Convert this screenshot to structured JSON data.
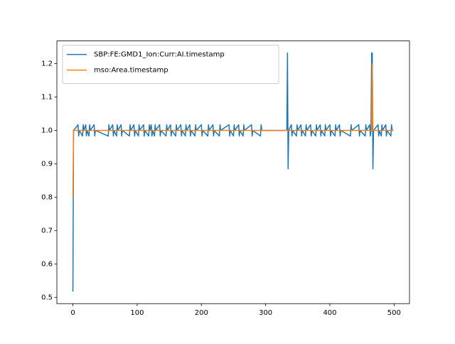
{
  "chart_data": {
    "type": "line",
    "x": [
      0,
      1,
      8,
      9,
      10,
      15,
      16,
      17,
      20,
      21,
      22,
      25,
      26,
      27,
      33,
      34,
      35,
      55,
      56,
      57,
      62,
      63,
      64,
      68,
      69,
      70,
      75,
      76,
      77,
      88,
      89,
      90,
      95,
      96,
      97,
      102,
      103,
      104,
      110,
      111,
      112,
      118,
      119,
      120,
      122,
      123,
      124,
      127,
      128,
      129,
      135,
      136,
      137,
      145,
      146,
      147,
      152,
      153,
      154,
      160,
      161,
      162,
      168,
      169,
      170,
      175,
      176,
      177,
      182,
      183,
      184,
      190,
      191,
      192,
      200,
      201,
      202,
      210,
      211,
      212,
      218,
      219,
      220,
      228,
      229,
      230,
      243,
      244,
      245,
      250,
      251,
      252,
      258,
      259,
      260,
      265,
      266,
      267,
      278,
      279,
      280,
      292,
      293,
      294,
      333,
      334,
      335,
      336,
      340,
      341,
      342,
      348,
      349,
      350,
      355,
      356,
      357,
      362,
      363,
      364,
      370,
      371,
      372,
      378,
      379,
      380,
      385,
      386,
      387,
      392,
      393,
      394,
      400,
      401,
      402,
      408,
      409,
      410,
      415,
      416,
      417,
      432,
      433,
      434,
      445,
      446,
      447,
      455,
      456,
      457,
      462,
      463,
      464,
      465,
      466,
      467,
      468,
      475,
      476,
      477,
      480,
      481,
      482,
      487,
      488,
      489,
      495,
      496,
      497,
      499
    ],
    "series": [
      {
        "name": "SBP:FE:GMD1_Ion:Curr:AI.timestamp",
        "color": "#1f77b4",
        "values": [
          0.517,
          1,
          1.017,
          0.983,
          1,
          0.983,
          1.017,
          1,
          1.017,
          0.983,
          1,
          0.983,
          1.017,
          1,
          1.017,
          0.983,
          1,
          0.983,
          1.017,
          1,
          1.017,
          0.983,
          1,
          0.983,
          1.017,
          1,
          1.017,
          0.983,
          1,
          0.983,
          1.017,
          1,
          1.017,
          0.983,
          1,
          0.983,
          1.017,
          1,
          1.017,
          0.983,
          1,
          0.983,
          1.017,
          1,
          1.017,
          0.983,
          1,
          0.983,
          1.017,
          1,
          1.017,
          0.983,
          1,
          0.983,
          1.017,
          1,
          1.017,
          0.983,
          1,
          0.983,
          1.017,
          1,
          1.017,
          0.983,
          1,
          0.983,
          1.017,
          1,
          1.017,
          0.983,
          1,
          0.983,
          1.017,
          1,
          1.017,
          0.983,
          1,
          0.983,
          1.017,
          1,
          1.017,
          0.983,
          1,
          0.983,
          1.017,
          1,
          1.017,
          0.983,
          1,
          0.983,
          1.017,
          1,
          1.017,
          0.983,
          1,
          0.983,
          1.017,
          1,
          1.017,
          0.983,
          1,
          0.983,
          1.017,
          1,
          1,
          1.232,
          0.885,
          1,
          1.017,
          0.983,
          1,
          0.983,
          1.017,
          1,
          1.017,
          0.983,
          1,
          0.983,
          1.017,
          1,
          1.017,
          0.983,
          1,
          0.983,
          1.017,
          1,
          1.017,
          0.983,
          1,
          0.983,
          1.017,
          1,
          1.017,
          0.983,
          1,
          0.983,
          1.017,
          1,
          1.017,
          0.983,
          1,
          0.983,
          1.017,
          1,
          1.017,
          0.983,
          1,
          0.983,
          1.017,
          1,
          1.017,
          0.983,
          1,
          1.232,
          1.232,
          0.885,
          1,
          1.017,
          0.983,
          1,
          0.983,
          1.017,
          1,
          1.017,
          0.983,
          1,
          0.983,
          1.017,
          1,
          1
        ]
      },
      {
        "name": "mso:Area.timestamp",
        "color": "#ff7f0e",
        "values": [
          0.8,
          1,
          1,
          1,
          1,
          1,
          1,
          1,
          1,
          1,
          1,
          1,
          1,
          1,
          1,
          1,
          1,
          1,
          1,
          1,
          1,
          1,
          1,
          1,
          1,
          1,
          1,
          1,
          1,
          1,
          1,
          1,
          1,
          1,
          1,
          1,
          1,
          1,
          1,
          1,
          1,
          1,
          1,
          1,
          1,
          1,
          1,
          1,
          1,
          1,
          1,
          1,
          1,
          1,
          1,
          1,
          1,
          1,
          1,
          1,
          1,
          1,
          1,
          1,
          1,
          1,
          1,
          1,
          1,
          1,
          1,
          1,
          1,
          1,
          1,
          1,
          1,
          1,
          1,
          1,
          1,
          1,
          1,
          1,
          1,
          1,
          1,
          1,
          1,
          1,
          1,
          1,
          1,
          1,
          1,
          1,
          1,
          1,
          1,
          1,
          1,
          1,
          1,
          1,
          1,
          1,
          1,
          1,
          1,
          1,
          1,
          1,
          1,
          1,
          1,
          1,
          1,
          1,
          1,
          1,
          1,
          1,
          1,
          1,
          1,
          1,
          1,
          1,
          1,
          1,
          1,
          1,
          1,
          1,
          1,
          1,
          1,
          1,
          1,
          1,
          1,
          1,
          1,
          1,
          1,
          1,
          1,
          1,
          1,
          1,
          1,
          1,
          1,
          1,
          1.2,
          1,
          1,
          1,
          1,
          1,
          1,
          1,
          1,
          1,
          1,
          1,
          1,
          1,
          1,
          1
        ]
      }
    ],
    "xlim": [
      -24.95,
      523.95
    ],
    "xticks": [
      0,
      100,
      200,
      300,
      400,
      500
    ],
    "ylim": [
      0.481,
      1.268
    ],
    "yticks": [
      0.5,
      0.6,
      0.7,
      0.8,
      0.9,
      {
        "value": 1,
        "label": "1.0"
      },
      1.1,
      1.2
    ],
    "legend": "upper left"
  }
}
